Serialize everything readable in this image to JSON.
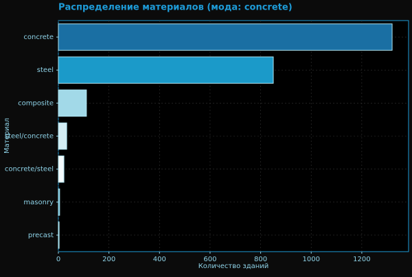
{
  "chart_data": {
    "type": "bar",
    "orientation": "horizontal",
    "title": "Распределение материалов (мода: concrete)",
    "x_label": "Количество зданий",
    "y_label": "Материал",
    "categories": [
      "concrete",
      "steel",
      "composite",
      "steel/concrete",
      "concrete/steel",
      "masonry",
      "precast"
    ],
    "values": [
      1320,
      850,
      111,
      33,
      22,
      5,
      3
    ],
    "colors": [
      "#1a6fa3",
      "#1b9ac9",
      "#a2d9e8",
      "#d4eef5",
      "#f4fbfd",
      "#4fb0d2",
      "#4fb0d2"
    ],
    "edge_color": "#aee4f2",
    "xlim": [
      0,
      1385
    ],
    "xticks": [
      0,
      200,
      400,
      600,
      800,
      1000,
      1200
    ],
    "grid": true
  }
}
